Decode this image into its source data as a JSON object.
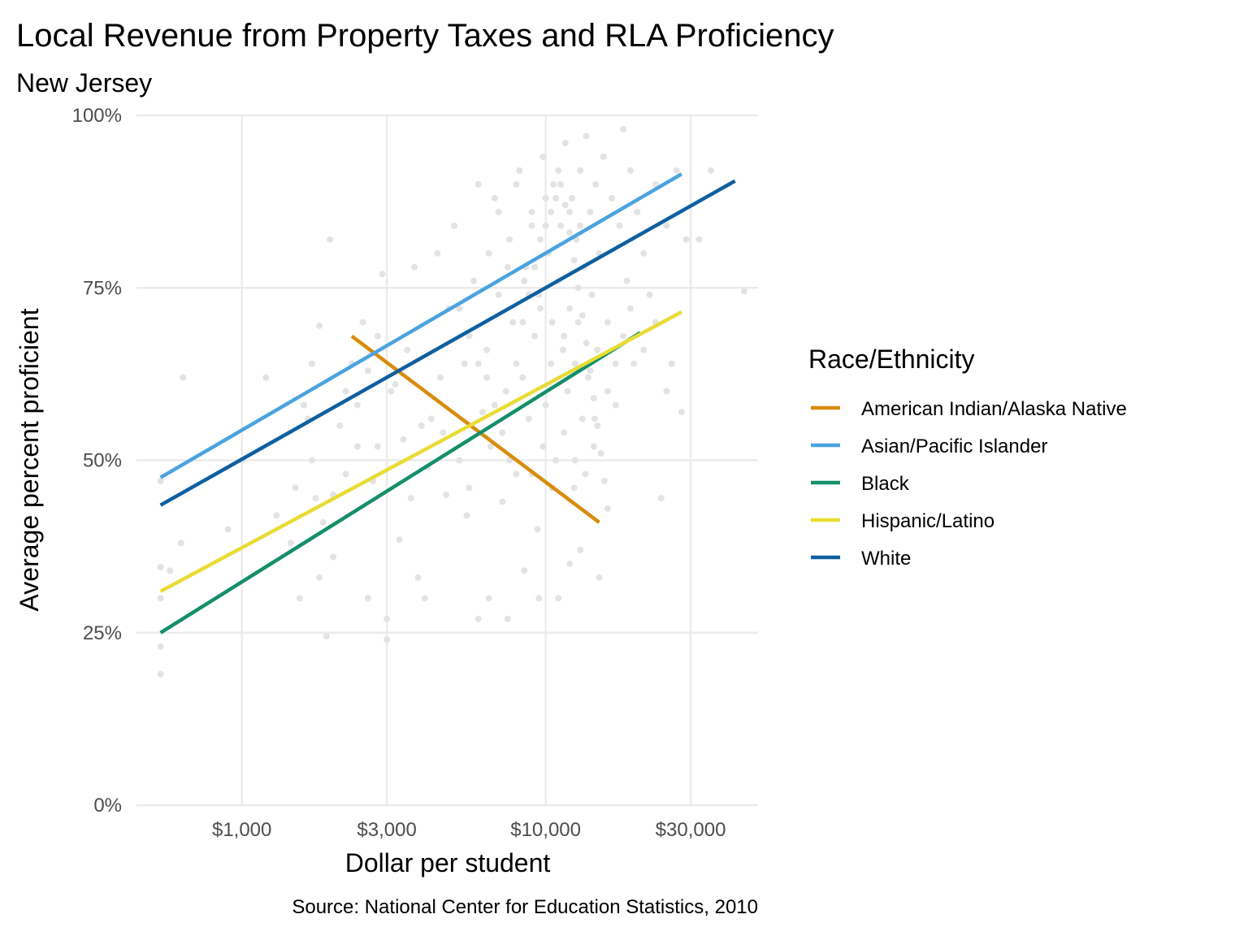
{
  "chart_data": {
    "type": "line",
    "title": "Local Revenue from Property Taxes and RLA Proficiency",
    "subtitle": "New Jersey",
    "xlabel": "Dollar per student",
    "ylabel": "Average percent proficient",
    "caption": "Source: National Center for Education Statistics, 2010",
    "x_scale": "log10",
    "xlim": [
      450,
      50000
    ],
    "ylim": [
      0,
      100
    ],
    "x_ticks": [
      {
        "value": 1000,
        "label": "$1,000"
      },
      {
        "value": 3000,
        "label": "$3,000"
      },
      {
        "value": 10000,
        "label": "$10,000"
      },
      {
        "value": 30000,
        "label": "$30,000"
      }
    ],
    "y_ticks": [
      {
        "value": 0,
        "label": "0%"
      },
      {
        "value": 25,
        "label": "25%"
      },
      {
        "value": 50,
        "label": "50%"
      },
      {
        "value": 75,
        "label": "75%"
      },
      {
        "value": 100,
        "label": "100%"
      }
    ],
    "legend": {
      "title": "Race/Ethnicity",
      "position": "right"
    },
    "series": [
      {
        "name": "American Indian/Alaska Native",
        "color": "#D98C0B",
        "x": [
          2300,
          15000
        ],
        "y": [
          68,
          41
        ]
      },
      {
        "name": "Asian/Pacific Islander",
        "color": "#4BA3E0",
        "x": [
          540,
          28000
        ],
        "y": [
          47.5,
          91.5
        ]
      },
      {
        "name": "Black",
        "color": "#148F6B",
        "x": [
          540,
          20500
        ],
        "y": [
          25,
          68.5
        ]
      },
      {
        "name": "Hispanic/Latino",
        "color": "#E8DC35",
        "x": [
          540,
          28000
        ],
        "y": [
          31,
          71.5
        ]
      },
      {
        "name": "White",
        "color": "#0F5FA0",
        "x": [
          540,
          42000
        ],
        "y": [
          43.5,
          90.5
        ]
      }
    ],
    "scatter": {
      "color": "#e3e3e3",
      "note": "background points: individual district values",
      "points": [
        [
          540,
          47
        ],
        [
          540,
          34.5
        ],
        [
          540,
          23
        ],
        [
          540,
          19
        ],
        [
          540,
          30
        ],
        [
          580,
          34
        ],
        [
          640,
          62
        ],
        [
          630,
          38
        ],
        [
          900,
          40
        ],
        [
          1000,
          50
        ],
        [
          1200,
          62
        ],
        [
          1300,
          42
        ],
        [
          1500,
          46
        ],
        [
          1600,
          58
        ],
        [
          1700,
          64
        ],
        [
          1750,
          44.5
        ],
        [
          1800,
          69.5
        ],
        [
          1800,
          33
        ],
        [
          1900,
          24.5
        ],
        [
          1950,
          82
        ],
        [
          2000,
          45
        ],
        [
          2100,
          55
        ],
        [
          2200,
          60
        ],
        [
          2300,
          64
        ],
        [
          2400,
          58
        ],
        [
          2500,
          70
        ],
        [
          2600,
          30
        ],
        [
          2700,
          47
        ],
        [
          2800,
          52
        ],
        [
          2900,
          77
        ],
        [
          3000,
          24
        ],
        [
          3000,
          27
        ],
        [
          3100,
          60
        ],
        [
          3300,
          38.5
        ],
        [
          3400,
          53
        ],
        [
          3600,
          44.5
        ],
        [
          3700,
          78
        ],
        [
          3800,
          33
        ],
        [
          4000,
          30
        ],
        [
          4200,
          56
        ],
        [
          4400,
          80
        ],
        [
          4500,
          62
        ],
        [
          4600,
          54
        ],
        [
          4800,
          72
        ],
        [
          5000,
          84
        ],
        [
          5200,
          50
        ],
        [
          5400,
          64
        ],
        [
          5600,
          46
        ],
        [
          5800,
          76
        ],
        [
          6000,
          90
        ],
        [
          6200,
          57
        ],
        [
          6400,
          66
        ],
        [
          6600,
          52
        ],
        [
          6800,
          88
        ],
        [
          7000,
          74
        ],
        [
          7200,
          44
        ],
        [
          7400,
          60
        ],
        [
          7600,
          82
        ],
        [
          7800,
          70
        ],
        [
          8000,
          48
        ],
        [
          8200,
          92
        ],
        [
          8400,
          62
        ],
        [
          8600,
          78
        ],
        [
          8800,
          56
        ],
        [
          9000,
          86
        ],
        [
          9200,
          68
        ],
        [
          9400,
          40
        ],
        [
          9600,
          72
        ],
        [
          9800,
          94
        ],
        [
          10000,
          58
        ],
        [
          10200,
          80
        ],
        [
          10400,
          64
        ],
        [
          10600,
          90
        ],
        [
          10800,
          50
        ],
        [
          11000,
          76
        ],
        [
          11200,
          84
        ],
        [
          11400,
          66
        ],
        [
          11600,
          96
        ],
        [
          11800,
          60
        ],
        [
          12000,
          72
        ],
        [
          12200,
          88
        ],
        [
          12400,
          46
        ],
        [
          12600,
          82
        ],
        [
          12800,
          70
        ],
        [
          13000,
          92
        ],
        [
          13200,
          56
        ],
        [
          13400,
          78
        ],
        [
          13600,
          97
        ],
        [
          13800,
          62
        ],
        [
          14000,
          86
        ],
        [
          14200,
          74
        ],
        [
          14400,
          52
        ],
        [
          14600,
          90
        ],
        [
          14800,
          66
        ],
        [
          15000,
          80
        ],
        [
          15500,
          94
        ],
        [
          16000,
          70
        ],
        [
          16500,
          88
        ],
        [
          17000,
          58
        ],
        [
          17500,
          84
        ],
        [
          18000,
          98
        ],
        [
          18500,
          76
        ],
        [
          19000,
          92
        ],
        [
          19500,
          64
        ],
        [
          20000,
          86
        ],
        [
          21000,
          80
        ],
        [
          22000,
          74
        ],
        [
          23000,
          90
        ],
        [
          24000,
          44.5
        ],
        [
          25000,
          84
        ],
        [
          26000,
          64
        ],
        [
          27000,
          92
        ],
        [
          28000,
          57
        ],
        [
          29000,
          82
        ],
        [
          32000,
          82
        ],
        [
          35000,
          92
        ],
        [
          45000,
          74.5
        ],
        [
          6500,
          30
        ],
        [
          7500,
          27
        ],
        [
          8500,
          34
        ],
        [
          9500,
          30
        ],
        [
          6000,
          27
        ],
        [
          11000,
          30
        ],
        [
          12000,
          35
        ],
        [
          13000,
          37
        ],
        [
          15000,
          33
        ],
        [
          5500,
          42
        ],
        [
          4700,
          45
        ],
        [
          4100,
          49
        ],
        [
          3900,
          55
        ],
        [
          3500,
          66
        ],
        [
          3200,
          61
        ],
        [
          2800,
          68
        ],
        [
          2600,
          63
        ],
        [
          2400,
          52
        ],
        [
          2200,
          48
        ],
        [
          2000,
          36
        ],
        [
          1850,
          41
        ],
        [
          1700,
          50
        ],
        [
          1650,
          56
        ],
        [
          1550,
          30
        ],
        [
          1450,
          38
        ],
        [
          9000,
          48
        ],
        [
          9800,
          52
        ],
        [
          10500,
          46
        ],
        [
          11500,
          54
        ],
        [
          12500,
          50
        ],
        [
          13500,
          48
        ],
        [
          14500,
          56
        ],
        [
          16000,
          60
        ],
        [
          17000,
          64
        ],
        [
          18000,
          68
        ],
        [
          19000,
          72
        ],
        [
          21000,
          66
        ],
        [
          23000,
          70
        ],
        [
          25000,
          60
        ],
        [
          7000,
          86
        ],
        [
          8000,
          90
        ],
        [
          9000,
          84
        ],
        [
          10000,
          88
        ],
        [
          11000,
          92
        ],
        [
          12000,
          86
        ],
        [
          13000,
          84
        ],
        [
          6500,
          80
        ],
        [
          7500,
          78
        ],
        [
          8500,
          76
        ],
        [
          9500,
          74
        ],
        [
          10500,
          70
        ],
        [
          11500,
          68
        ],
        [
          12500,
          64
        ],
        [
          5200,
          72
        ],
        [
          5600,
          68
        ],
        [
          6000,
          64
        ],
        [
          6400,
          62
        ],
        [
          6800,
          58
        ],
        [
          7200,
          54
        ],
        [
          7600,
          50
        ],
        [
          8000,
          64
        ],
        [
          8400,
          70
        ],
        [
          8800,
          74
        ],
        [
          9200,
          78
        ],
        [
          9600,
          82
        ],
        [
          10000,
          84
        ],
        [
          10400,
          86
        ],
        [
          10800,
          88
        ],
        [
          11200,
          90
        ],
        [
          11600,
          87
        ],
        [
          12000,
          83
        ],
        [
          12400,
          79
        ],
        [
          12800,
          75
        ],
        [
          13200,
          71
        ],
        [
          13600,
          67
        ],
        [
          14000,
          63
        ],
        [
          14400,
          59
        ],
        [
          14800,
          55
        ],
        [
          15200,
          51
        ],
        [
          15600,
          47
        ],
        [
          16000,
          43
        ]
      ]
    }
  }
}
